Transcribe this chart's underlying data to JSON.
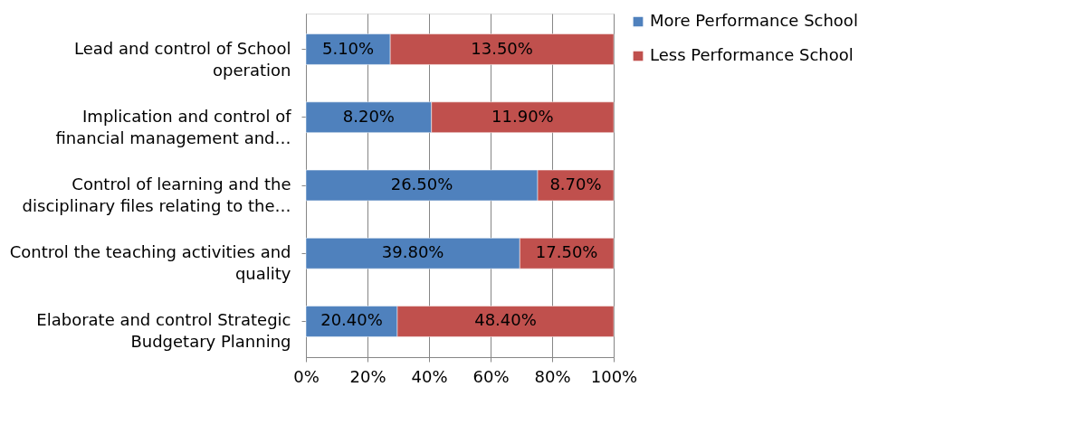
{
  "chart_data": {
    "type": "bar",
    "orientation": "horizontal",
    "stacked": true,
    "categories": [
      "Lead and control of School operation",
      "Implication and control of financial management and…",
      "Control of learning and the disciplinary files relating to the…",
      "Control the teaching activities and quality",
      "Elaborate and control Strategic Budgetary Planning"
    ],
    "series": [
      {
        "name": "More Performance School",
        "color": "#4f81bd",
        "values": [
          27.4,
          40.8,
          75.3,
          69.5,
          29.7
        ]
      },
      {
        "name": "Less Performance School",
        "color": "#c0504d",
        "values": [
          72.6,
          59.2,
          24.7,
          30.5,
          70.3
        ]
      }
    ],
    "annotations": [
      "5.10%",
      "13.50%",
      "8.20%",
      "11.90%",
      "26.50%",
      "8.70%",
      "39.80%",
      "17.50%",
      "20.40%",
      "48.40%"
    ],
    "xlim": [
      0,
      100
    ],
    "xticks": [
      {
        "value": 0,
        "label": "0%"
      },
      {
        "value": 20,
        "label": "20%"
      },
      {
        "value": 40,
        "label": "40%"
      },
      {
        "value": 60,
        "label": "60%"
      },
      {
        "value": 80,
        "label": "80%"
      },
      {
        "value": 100,
        "label": "100%"
      }
    ],
    "grid": "x",
    "legend": "right"
  }
}
